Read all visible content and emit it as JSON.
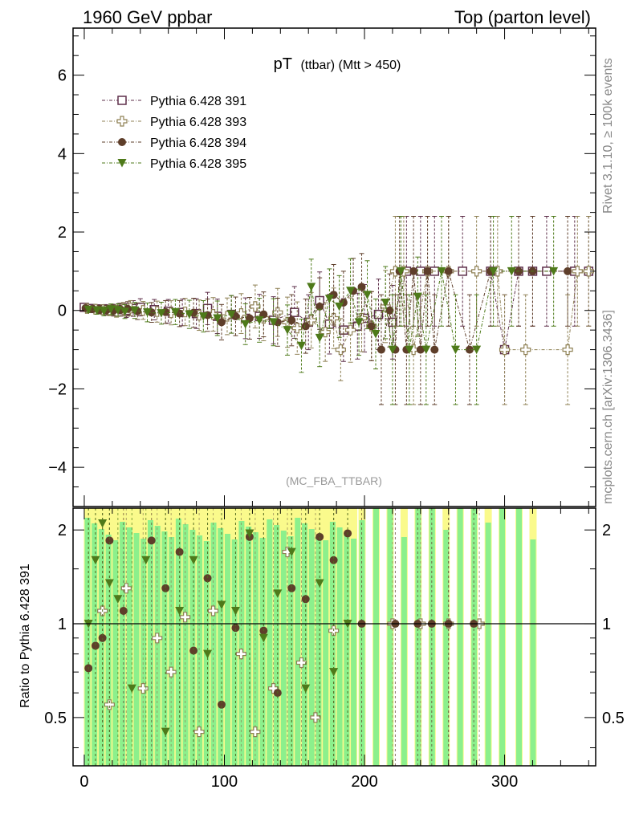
{
  "header": {
    "left": "1960 GeV ppbar",
    "right": "Top (parton level)"
  },
  "side_labels": {
    "rivet": "Rivet 3.1.10, ≥ 100k events",
    "mcplots": "mcplots.cern.ch [arXiv:1306.3436]"
  },
  "chart_data": {
    "type": "scatter",
    "title": "pT",
    "title_sub": "(ttbar) (Mtt > 450)",
    "analysis_label": "(MC_FBA_TTBAR)",
    "xlabel": "",
    "ylabel": "",
    "xlim": [
      -8,
      365
    ],
    "ylim": [
      -5,
      7.2
    ],
    "xticks": [
      "0",
      "100",
      "200",
      "300"
    ],
    "xtick_values": [
      0,
      100,
      200,
      300
    ],
    "yticks": [
      "−4",
      "−2",
      "0",
      "2",
      "4",
      "6"
    ],
    "ytick_values": [
      -4,
      -2,
      0,
      2,
      4,
      6
    ],
    "legend_position": "top-left",
    "series": [
      {
        "name": "Pythia 6.428 391",
        "color": "#5e2f4a",
        "marker": "open-square",
        "x": [
          0,
          5,
          10,
          15,
          20,
          25,
          30,
          35,
          40,
          50,
          60,
          70,
          80,
          88,
          95,
          105,
          115,
          125,
          135,
          150,
          160,
          168,
          175,
          185,
          195,
          200,
          210,
          220,
          230,
          240,
          250,
          270,
          290,
          300,
          310,
          320,
          330,
          350,
          360
        ],
        "y": [
          0.08,
          0.05,
          0.04,
          0.03,
          0.02,
          0.02,
          0.0,
          0.05,
          0.08,
          0.02,
          -0.02,
          -0.05,
          -0.08,
          0.05,
          -0.15,
          -0.1,
          -0.2,
          -0.15,
          -0.25,
          -0.05,
          -0.3,
          0.25,
          -0.35,
          -0.5,
          -0.4,
          -0.2,
          -0.1,
          -0.3,
          1.0,
          1.0,
          1.0,
          1.0,
          1.0,
          -1.0,
          1.0,
          1.0,
          1.0,
          1.0,
          1.0
        ]
      },
      {
        "name": "Pythia 6.428 393",
        "color": "#8f8155",
        "marker": "open-cross",
        "x": [
          2,
          8,
          13,
          18,
          23,
          28,
          33,
          42,
          52,
          62,
          72,
          82,
          92,
          102,
          112,
          122,
          128,
          138,
          145,
          152,
          162,
          172,
          178,
          183,
          190,
          198,
          205,
          215,
          222,
          228,
          235,
          245,
          260,
          280,
          295,
          300,
          315,
          345,
          352,
          360
        ],
        "y": [
          0.05,
          0.03,
          0.02,
          0.0,
          -0.02,
          0.03,
          0.06,
          0.0,
          -0.03,
          -0.06,
          -0.04,
          -0.12,
          -0.1,
          -0.15,
          -0.08,
          0.1,
          -0.2,
          -0.05,
          -0.3,
          -0.45,
          -0.25,
          -0.55,
          -0.2,
          -1.0,
          -0.5,
          -0.2,
          -0.4,
          0.1,
          1.0,
          1.0,
          -1.0,
          1.0,
          1.0,
          1.0,
          1.0,
          -1.0,
          -1.0,
          -1.0,
          1.0,
          1.0
        ]
      },
      {
        "name": "Pythia 6.428 394",
        "color": "#5e3e2a",
        "marker": "filled-circle",
        "x": [
          1,
          6,
          11,
          16,
          21,
          26,
          31,
          38,
          48,
          58,
          68,
          78,
          88,
          98,
          108,
          118,
          128,
          138,
          148,
          158,
          168,
          178,
          185,
          192,
          198,
          205,
          212,
          218,
          222,
          225,
          230,
          235,
          240,
          245,
          250,
          260,
          275,
          290,
          310,
          320,
          345
        ],
        "y": [
          0.06,
          0.04,
          0.02,
          0.01,
          0.0,
          0.02,
          0.04,
          -0.02,
          -0.05,
          -0.04,
          -0.08,
          -0.06,
          -0.12,
          -0.3,
          -0.15,
          -0.2,
          -0.1,
          -0.3,
          -0.25,
          -0.4,
          0.1,
          0.4,
          0.2,
          0.5,
          0.6,
          -0.4,
          -1.0,
          0.0,
          -1.0,
          1.0,
          -1.0,
          1.0,
          -1.0,
          1.0,
          -1.0,
          1.0,
          -1.0,
          1.0,
          1.0,
          1.0,
          1.0
        ]
      },
      {
        "name": "Pythia 6.428 395",
        "color": "#4e7a1a",
        "marker": "filled-triangle-down",
        "x": [
          3,
          9,
          14,
          19,
          24,
          29,
          36,
          45,
          55,
          65,
          75,
          85,
          95,
          105,
          115,
          125,
          135,
          145,
          155,
          162,
          168,
          175,
          182,
          190,
          196,
          202,
          208,
          215,
          220,
          226,
          232,
          238,
          244,
          255,
          265,
          280,
          292,
          305,
          335
        ],
        "y": [
          0.02,
          0.0,
          -0.02,
          0.03,
          0.01,
          -0.03,
          0.0,
          -0.05,
          -0.07,
          -0.04,
          -0.1,
          -0.15,
          -0.2,
          -0.1,
          -0.35,
          -0.25,
          -0.3,
          -0.5,
          -0.9,
          0.6,
          -0.7,
          0.3,
          0.1,
          0.5,
          -0.3,
          0.4,
          -0.6,
          0.2,
          -1.0,
          1.0,
          -1.0,
          0.35,
          -1.0,
          1.0,
          -1.0,
          -1.0,
          1.0,
          1.0,
          1.0
        ]
      }
    ],
    "ratio_panel": {
      "ylabel": "Ratio to Pythia 6.428 391",
      "ylim": [
        0.35,
        2.35
      ],
      "yticks": [
        "0.5",
        "1",
        "2"
      ],
      "ytick_values": [
        0.5,
        1,
        2
      ],
      "reference": 1,
      "band_colors": {
        "yellow": "#fafa8c",
        "green": "#8cf08c"
      },
      "bands_x": [
        2,
        7,
        12,
        17,
        22,
        27,
        32,
        37,
        42,
        47,
        52,
        57,
        62,
        67,
        72,
        77,
        82,
        87,
        92,
        97,
        102,
        107,
        112,
        117,
        122,
        127,
        132,
        137,
        142,
        147,
        152,
        157,
        162,
        167,
        172,
        177,
        182,
        187,
        192,
        198,
        208,
        218,
        228,
        238,
        248,
        258,
        268,
        278,
        288,
        298,
        310,
        320
      ],
      "series": [
        {
          "name": "Pythia 6.428 393",
          "x": [
            13,
            18,
            30,
            42,
            52,
            62,
            72,
            82,
            92,
            112,
            122,
            135,
            145,
            155,
            165,
            178,
            220,
            240,
            260,
            282
          ],
          "y": [
            1.1,
            0.55,
            1.3,
            0.62,
            0.9,
            0.7,
            1.05,
            0.45,
            1.1,
            0.8,
            0.45,
            0.62,
            1.7,
            0.75,
            0.5,
            0.95,
            1.0,
            1.0,
            1.0,
            1.0
          ]
        },
        {
          "name": "Pythia 6.428 394",
          "x": [
            3,
            8,
            13,
            18,
            28,
            48,
            58,
            68,
            78,
            88,
            98,
            108,
            118,
            128,
            138,
            148,
            158,
            168,
            178,
            188,
            198,
            222,
            238,
            248,
            260,
            278
          ],
          "y": [
            0.72,
            0.85,
            0.9,
            1.85,
            1.1,
            1.85,
            1.3,
            1.7,
            0.82,
            1.4,
            0.55,
            0.97,
            1.9,
            0.95,
            0.6,
            1.3,
            1.2,
            1.9,
            1.6,
            1.95,
            1.0,
            1.0,
            1.0,
            1.0,
            1.0,
            1.0
          ]
        },
        {
          "name": "Pythia 6.428 395",
          "x": [
            3,
            8,
            13,
            18,
            24,
            34,
            44,
            58,
            68,
            78,
            88,
            98,
            108,
            118,
            128,
            138,
            148,
            158,
            168,
            178,
            188
          ],
          "y": [
            1.0,
            1.6,
            2.1,
            1.35,
            1.2,
            0.62,
            1.6,
            0.45,
            1.1,
            1.6,
            0.8,
            1.15,
            1.1,
            1.95,
            0.9,
            1.25,
            1.7,
            0.62,
            1.35,
            0.7,
            1.0
          ]
        }
      ]
    }
  }
}
